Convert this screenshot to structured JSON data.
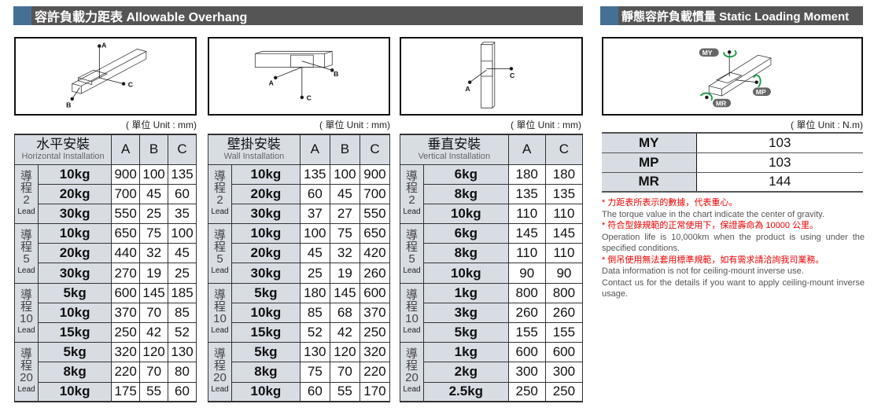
{
  "left_section": {
    "title": "容許負載力距表 Allowable Overhang"
  },
  "right_section": {
    "title": "靜態容許負載慣量 Static Loading Moment"
  },
  "colors": {
    "header_bar": "#555555",
    "accent": "#466f96",
    "cell_shade": "#d8dde4",
    "note_red": "#ee0000",
    "arrow_green": "#1a9a4a"
  },
  "unit_mm": "( 單位 Unit : mm)",
  "unit_nm": "( 單位 Unit : N.m)",
  "lead_label": "Lead",
  "lead_zh": [
    "導",
    "程"
  ],
  "tables": [
    {
      "title_zh": "水平安裝",
      "title_en": "Horizontal Installation",
      "diagram_labels": [
        "A",
        "B",
        "C"
      ],
      "columns": [
        "A",
        "B",
        "C"
      ],
      "groups": [
        {
          "lead": "2",
          "rows": [
            [
              "10kg",
              "900",
              "100",
              "135"
            ],
            [
              "20kg",
              "700",
              "45",
              "60"
            ],
            [
              "30kg",
              "550",
              "25",
              "35"
            ]
          ]
        },
        {
          "lead": "5",
          "rows": [
            [
              "10kg",
              "650",
              "75",
              "100"
            ],
            [
              "20kg",
              "440",
              "32",
              "45"
            ],
            [
              "30kg",
              "270",
              "19",
              "25"
            ]
          ]
        },
        {
          "lead": "10",
          "rows": [
            [
              "5kg",
              "600",
              "145",
              "185"
            ],
            [
              "10kg",
              "370",
              "70",
              "85"
            ],
            [
              "15kg",
              "250",
              "42",
              "52"
            ]
          ]
        },
        {
          "lead": "20",
          "rows": [
            [
              "5kg",
              "320",
              "120",
              "130"
            ],
            [
              "8kg",
              "220",
              "70",
              "80"
            ],
            [
              "10kg",
              "175",
              "55",
              "60"
            ]
          ]
        }
      ]
    },
    {
      "title_zh": "壁掛安裝",
      "title_en": "Wall Installation",
      "diagram_labels": [
        "A",
        "B",
        "C"
      ],
      "columns": [
        "A",
        "B",
        "C"
      ],
      "groups": [
        {
          "lead": "2",
          "rows": [
            [
              "10kg",
              "135",
              "100",
              "900"
            ],
            [
              "20kg",
              "60",
              "45",
              "700"
            ],
            [
              "30kg",
              "37",
              "27",
              "550"
            ]
          ]
        },
        {
          "lead": "5",
          "rows": [
            [
              "10kg",
              "100",
              "75",
              "650"
            ],
            [
              "20kg",
              "45",
              "32",
              "420"
            ],
            [
              "30kg",
              "25",
              "19",
              "260"
            ]
          ]
        },
        {
          "lead": "10",
          "rows": [
            [
              "5kg",
              "180",
              "145",
              "600"
            ],
            [
              "10kg",
              "85",
              "68",
              "370"
            ],
            [
              "15kg",
              "52",
              "42",
              "250"
            ]
          ]
        },
        {
          "lead": "20",
          "rows": [
            [
              "5kg",
              "130",
              "120",
              "320"
            ],
            [
              "8kg",
              "75",
              "70",
              "220"
            ],
            [
              "10kg",
              "60",
              "55",
              "170"
            ]
          ]
        }
      ]
    },
    {
      "title_zh": "垂直安裝",
      "title_en": "Vertical Installation",
      "diagram_labels": [
        "A",
        "C"
      ],
      "columns": [
        "A",
        "C"
      ],
      "groups": [
        {
          "lead": "2",
          "rows": [
            [
              "6kg",
              "180",
              "180"
            ],
            [
              "8kg",
              "135",
              "135"
            ],
            [
              "10kg",
              "110",
              "110"
            ]
          ]
        },
        {
          "lead": "5",
          "rows": [
            [
              "6kg",
              "145",
              "145"
            ],
            [
              "8kg",
              "110",
              "110"
            ],
            [
              "10kg",
              "90",
              "90"
            ]
          ]
        },
        {
          "lead": "10",
          "rows": [
            [
              "1kg",
              "800",
              "800"
            ],
            [
              "3kg",
              "260",
              "260"
            ],
            [
              "5kg",
              "155",
              "155"
            ]
          ]
        },
        {
          "lead": "20",
          "rows": [
            [
              "1kg",
              "600",
              "600"
            ],
            [
              "2kg",
              "300",
              "300"
            ],
            [
              "2.5kg",
              "250",
              "250"
            ]
          ]
        }
      ]
    }
  ],
  "moment": {
    "diagram_labels": [
      "MY",
      "MP",
      "MR"
    ],
    "rows": [
      {
        "key": "MY",
        "value": "103"
      },
      {
        "key": "MP",
        "value": "103"
      },
      {
        "key": "MR",
        "value": "144"
      }
    ]
  },
  "notes": [
    {
      "zh": "* 力距表所表示的數據，代表重心。",
      "en": "The torque value in the chart indicate the center of gravity."
    },
    {
      "zh": "* 符合型錄規範的正常使用下，保證壽命為 10000 公里。",
      "en": "Operation life is 10,000km when the product is using under the specified conditions."
    },
    {
      "zh": "* 倒吊使用無法套用標準規範，如有需求請洽詢我司業務。",
      "en": "Data information is not for ceiling-mount inverse use.",
      "en2": "Contact us for the details if you want to apply ceiling-mount inverse usage."
    }
  ]
}
